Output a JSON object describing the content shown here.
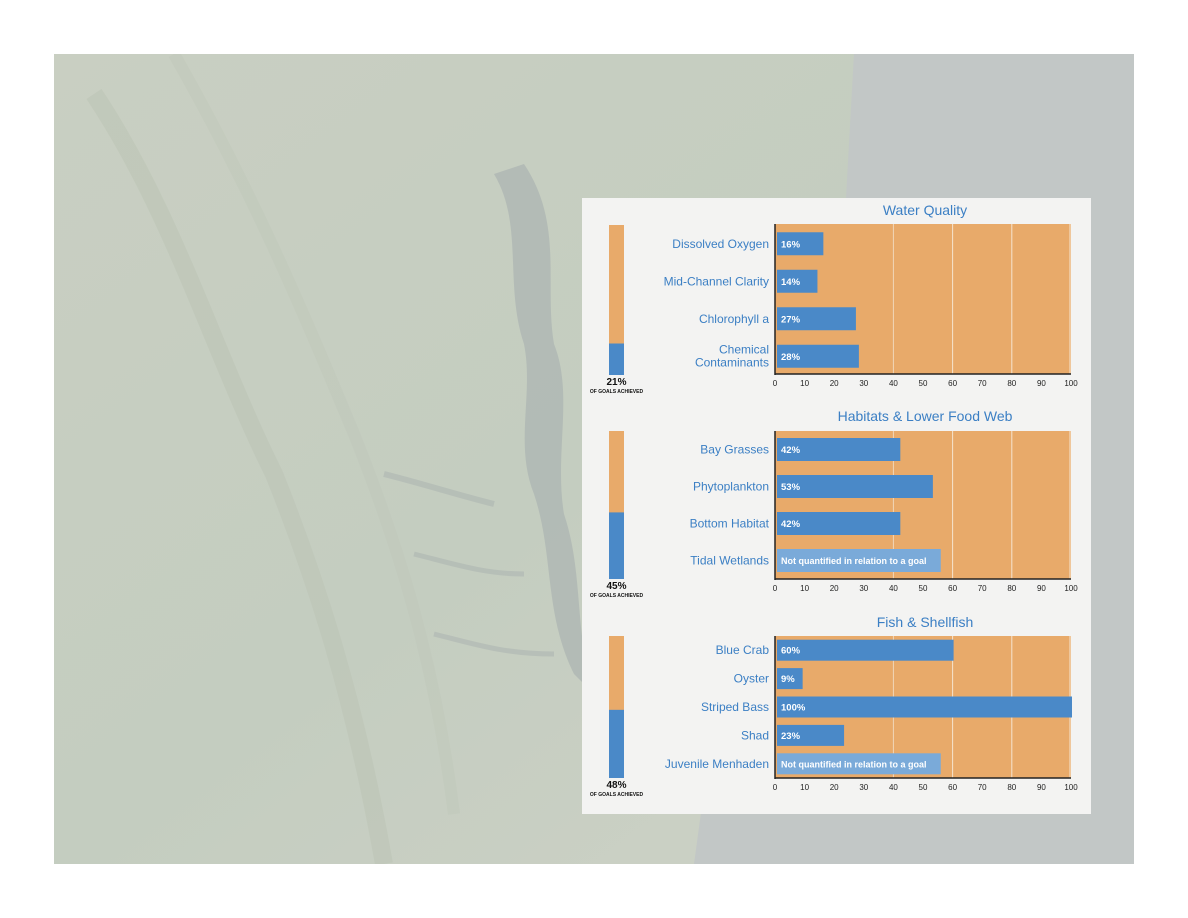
{
  "colors": {
    "accent_blue": "#4a89c8",
    "goal_orange": "#e8aa6a",
    "label_blue": "#3b7fc4",
    "unquantified_blue": "#7aaad9",
    "panel_bg": "#f3f3f2"
  },
  "chart_data": [
    {
      "type": "bar",
      "orientation": "horizontal",
      "title": "Water Quality",
      "categories": [
        "Dissolved Oxygen",
        "Mid-Channel Clarity",
        "Chlorophyll a",
        "Chemical Contaminants"
      ],
      "values": [
        16,
        14,
        27,
        28
      ],
      "value_labels": [
        "16%",
        "14%",
        "27%",
        "28%"
      ],
      "xlim": [
        0,
        100
      ],
      "xticks": [
        0,
        10,
        20,
        30,
        40,
        50,
        60,
        70,
        80,
        90,
        100
      ],
      "summary": {
        "value": 21,
        "label": "21%",
        "caption": "OF GOALS ACHIEVED"
      }
    },
    {
      "type": "bar",
      "orientation": "horizontal",
      "title": "Habitats & Lower Food Web",
      "categories": [
        "Bay Grasses",
        "Phytoplankton",
        "Bottom Habitat",
        "Tidal Wetlands"
      ],
      "values": [
        42,
        53,
        42,
        null
      ],
      "value_labels": [
        "42%",
        "53%",
        "42%",
        "Not quantified in relation to a goal"
      ],
      "xlim": [
        0,
        100
      ],
      "xticks": [
        0,
        10,
        20,
        30,
        40,
        50,
        60,
        70,
        80,
        90,
        100
      ],
      "summary": {
        "value": 45,
        "label": "45%",
        "caption": "OF GOALS ACHIEVED"
      }
    },
    {
      "type": "bar",
      "orientation": "horizontal",
      "title": "Fish & Shellfish",
      "categories": [
        "Blue Crab",
        "Oyster",
        "Striped Bass",
        "Shad",
        "Juvenile Menhaden"
      ],
      "values": [
        60,
        9,
        100,
        23,
        null
      ],
      "value_labels": [
        "60%",
        "9%",
        "100%",
        "23%",
        "Not quantified in relation to a goal"
      ],
      "xlim": [
        0,
        100
      ],
      "xticks": [
        0,
        10,
        20,
        30,
        40,
        50,
        60,
        70,
        80,
        90,
        100
      ],
      "summary": {
        "value": 48,
        "label": "48%",
        "caption": "OF GOALS ACHIEVED"
      }
    }
  ]
}
